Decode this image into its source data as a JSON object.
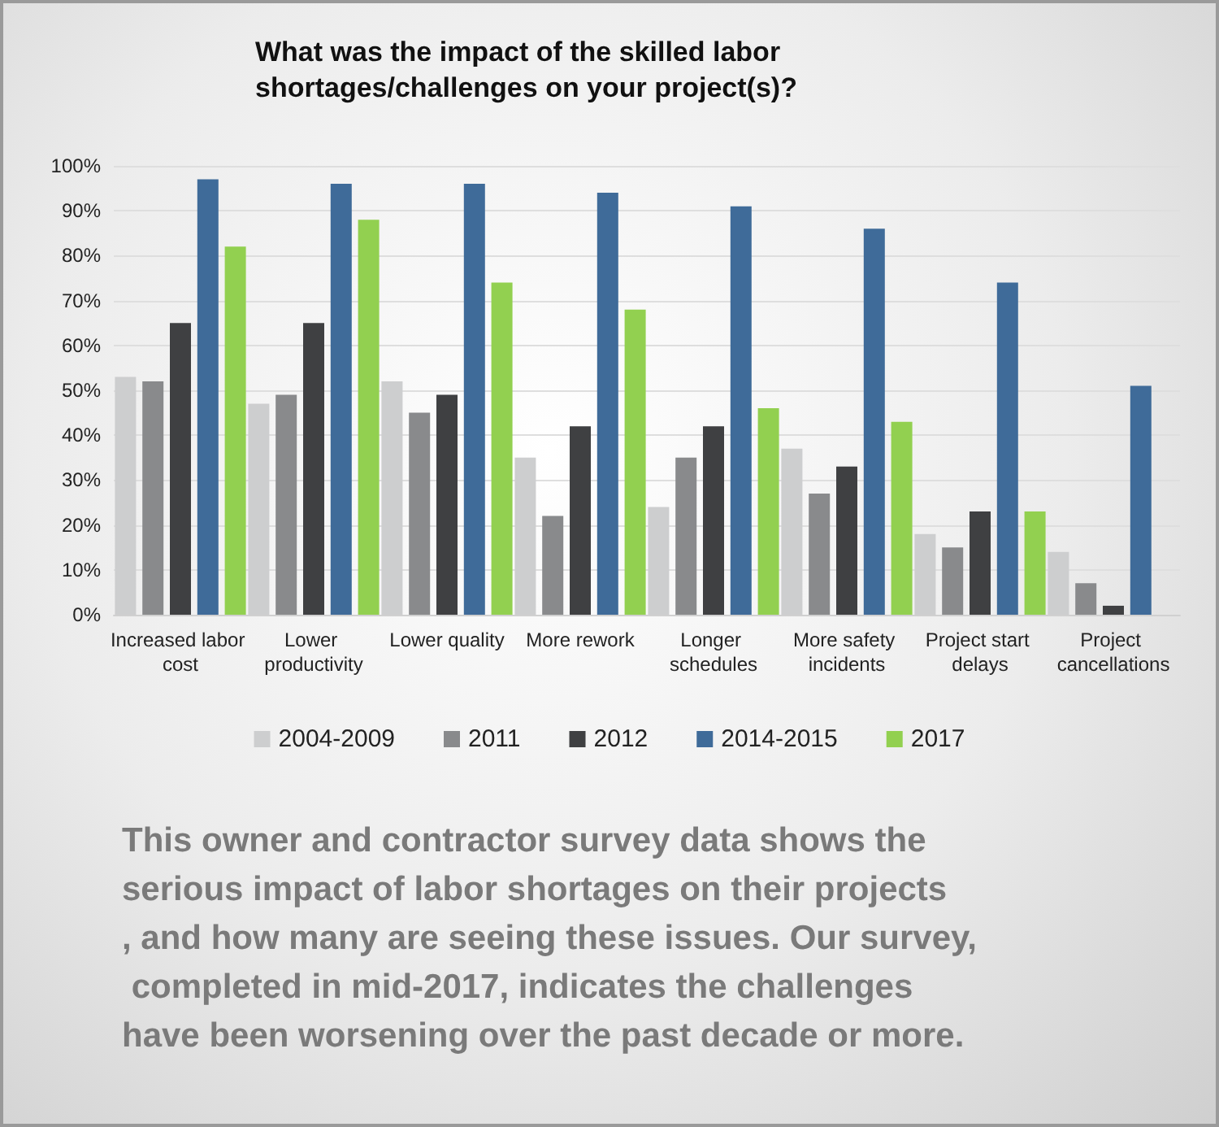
{
  "chart_data": {
    "type": "bar",
    "title": "What was the impact of the skilled labor shortages/challenges on your project(s)?",
    "categories": [
      "Increased labor cost",
      "Lower productivity",
      "Lower quality",
      "More rework",
      "Longer schedules",
      "More safety incidents",
      "Project start delays",
      "Project cancellations"
    ],
    "series": [
      {
        "name": "2004-2009",
        "color": "#cdcecf",
        "values": [
          53,
          47,
          52,
          35,
          24,
          37,
          18,
          14
        ]
      },
      {
        "name": "2011",
        "color": "#898a8c",
        "values": [
          52,
          49,
          45,
          22,
          35,
          27,
          15,
          7
        ]
      },
      {
        "name": "2012",
        "color": "#3f4042",
        "values": [
          65,
          65,
          49,
          42,
          42,
          33,
          23,
          2
        ]
      },
      {
        "name": "2014-2015",
        "color": "#3f6b99",
        "values": [
          97,
          96,
          96,
          94,
          91,
          86,
          74,
          51
        ]
      },
      {
        "name": "2017",
        "color": "#92d050",
        "values": [
          82,
          88,
          74,
          68,
          46,
          43,
          23,
          null
        ]
      }
    ],
    "ylim": [
      0,
      100
    ],
    "yticks": [
      {
        "value": 0,
        "label": "0%"
      },
      {
        "value": 10,
        "label": "10%"
      },
      {
        "value": 20,
        "label": "20%"
      },
      {
        "value": 30,
        "label": "30%"
      },
      {
        "value": 40,
        "label": "40%"
      },
      {
        "value": 50,
        "label": "50%"
      },
      {
        "value": 60,
        "label": "60%"
      },
      {
        "value": 70,
        "label": "70%"
      },
      {
        "value": 80,
        "label": "80%"
      },
      {
        "value": 90,
        "label": "90%"
      },
      {
        "value": 100,
        "label": "100%"
      }
    ],
    "grid": "y",
    "legend": "bottom",
    "annotations": [
      "This owner and contractor survey data shows the serious impact of labor shortages on their projects, and how many are seeing these issues. Our survey, completed in mid-2017, indicates the challenges have been worsening over the past decade or more."
    ]
  }
}
